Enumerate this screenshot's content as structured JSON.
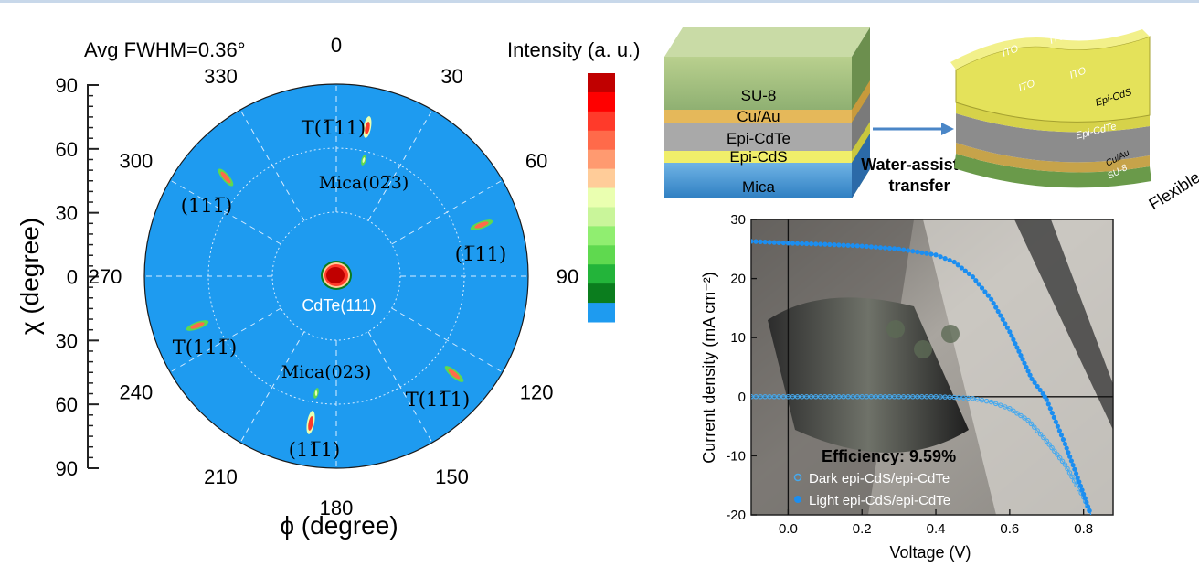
{
  "pole_figure": {
    "title": "Avg FWHM=0.36°",
    "chi_axis_label": "χ (degree)",
    "phi_axis_label": "ϕ (degree)",
    "chi_ticks": [
      "90",
      "60",
      "30",
      "0",
      "30",
      "60",
      "90"
    ],
    "phi_ticks": [
      "0",
      "30",
      "60",
      "90",
      "120",
      "150",
      "180",
      "210",
      "240",
      "270",
      "300",
      "330"
    ],
    "center_label": "CdTe(111)",
    "peak_labels": [
      "T(1̅11)",
      "Mica(02̅3)",
      "(111̅)",
      "(1̅11)",
      "T(111̅)",
      "Mica(023)",
      "T(11̅1)",
      "(11̅1)"
    ],
    "background_color": "#1e9bf0",
    "colorbar": {
      "title": "Intensity (a. u.)",
      "colors": [
        "#c00000",
        "#ff0000",
        "#ff3a2a",
        "#ff6a4a",
        "#ff9a70",
        "#ffcc99",
        "#eaffb0",
        "#c9f59a",
        "#90ee70",
        "#5fd94f",
        "#23b43a",
        "#0b7d1e",
        "#1e9bf0"
      ]
    }
  },
  "schematic": {
    "stack_layers": [
      "SU-8",
      "Cu/Au",
      "Epi-CdTe",
      "Epi-CdS",
      "Mica"
    ],
    "arrow_label": "Water-assisted transfer",
    "arrow_label_line1": "Water-assisted",
    "arrow_label_line2": "transfer",
    "flex_layers": [
      "ITO",
      "ITO",
      "ITO",
      "ITO",
      "Epi-CdS",
      "Epi-CdTe",
      "Cu/Au",
      "SU-8"
    ],
    "flexible_label": "Flexible"
  },
  "chart_data": {
    "type": "line",
    "xlabel": "Voltage (V)",
    "ylabel": "Current density (mA cm⁻²)",
    "xlim": [
      -0.1,
      0.88
    ],
    "ylim": [
      -20,
      30
    ],
    "xticks": [
      0.0,
      0.2,
      0.4,
      0.6,
      0.8
    ],
    "yticks": [
      -20,
      -10,
      0,
      10,
      20,
      30
    ],
    "xtick_labels": [
      "0.0",
      "0.2",
      "0.4",
      "0.6",
      "0.8"
    ],
    "ytick_labels": [
      "-20",
      "-10",
      "0",
      "10",
      "20",
      "30"
    ],
    "annotation": "Efficiency: 9.59%",
    "legend_position": "bottom-left",
    "series": [
      {
        "name": "Dark epi-CdS/epi-CdTe",
        "color": "#46a9ee",
        "x": [
          -0.1,
          0.0,
          0.1,
          0.2,
          0.3,
          0.4,
          0.45,
          0.5,
          0.55,
          0.6,
          0.65,
          0.7,
          0.75,
          0.8,
          0.82
        ],
        "y": [
          0,
          0,
          0,
          0,
          0,
          0,
          -0.1,
          -0.3,
          -0.9,
          -2.0,
          -4.0,
          -7.5,
          -11.5,
          -17.0,
          -20.0
        ]
      },
      {
        "name": "Light epi-CdS/epi-CdTe",
        "color": "#1c8ef0",
        "x": [
          -0.1,
          0.0,
          0.1,
          0.2,
          0.3,
          0.4,
          0.45,
          0.5,
          0.55,
          0.6,
          0.63,
          0.66,
          0.69,
          0.7,
          0.72,
          0.75,
          0.78,
          0.8,
          0.82
        ],
        "y": [
          26.3,
          26.0,
          25.8,
          25.5,
          25.0,
          24.0,
          22.8,
          20.3,
          16.5,
          11.0,
          7.0,
          3.0,
          0.5,
          -0.5,
          -3.5,
          -8.0,
          -13.0,
          -16.5,
          -20.0
        ]
      }
    ]
  }
}
